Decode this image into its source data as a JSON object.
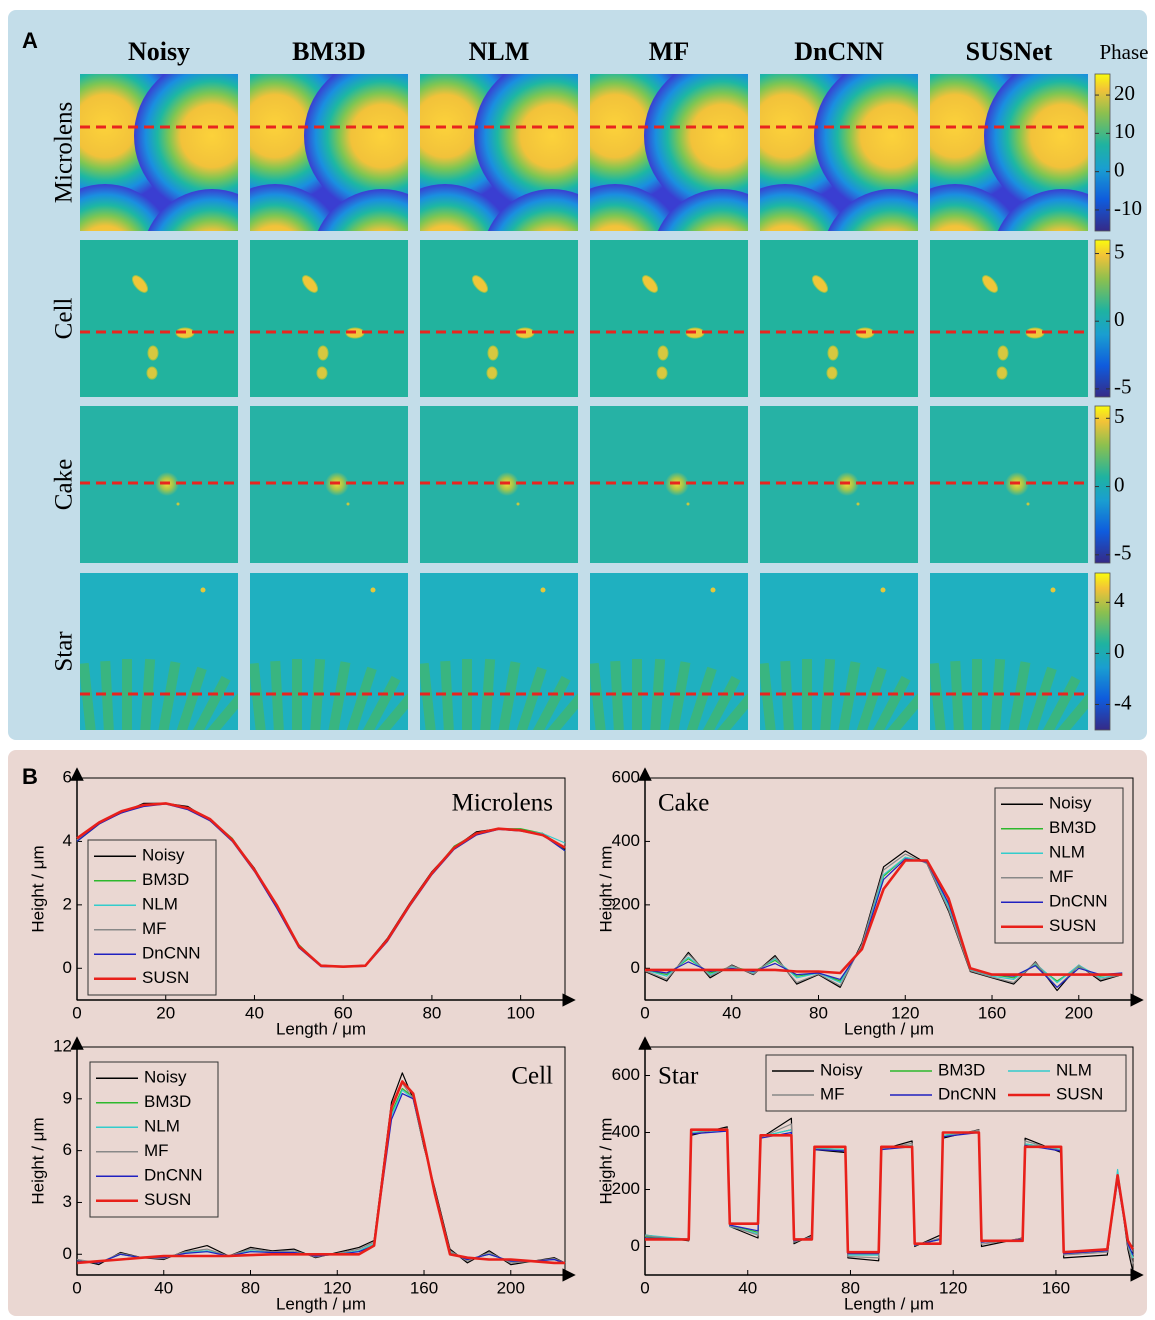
{
  "panel_a": {
    "label": "A",
    "colorbar_title": "Phase",
    "columns": [
      "Noisy",
      "BM3D",
      "NLM",
      "MF",
      "DnCNN",
      "SUSNet"
    ],
    "rows": [
      {
        "label": "Microlens",
        "colorbar": {
          "lim": [
            -15.5,
            25.5
          ],
          "ticks": [
            20,
            10,
            0,
            -10
          ]
        }
      },
      {
        "label": "Cell",
        "colorbar": {
          "lim": [
            -5.6,
            6
          ],
          "ticks": [
            5,
            0,
            -5
          ]
        }
      },
      {
        "label": "Cake",
        "colorbar": {
          "lim": [
            -5.6,
            5.9
          ],
          "ticks": [
            5,
            0,
            -5
          ]
        }
      },
      {
        "label": "Star",
        "colorbar": {
          "lim": [
            -6,
            6.3
          ],
          "ticks": [
            4,
            0,
            -4
          ]
        }
      }
    ]
  },
  "panel_b": {
    "label": "B"
  },
  "chart_data": [
    {
      "type": "line",
      "title": "Microlens",
      "x_label": "Length / μm",
      "y_label": "Height / μm",
      "xlim": [
        0,
        110
      ],
      "ylim": [
        -1,
        6
      ],
      "xticks": [
        0,
        20,
        40,
        60,
        80,
        100
      ],
      "yticks": [
        0,
        2,
        4,
        6
      ],
      "legend": "lower left",
      "legend_columns": 1,
      "x": [
        0,
        5,
        10,
        15,
        20,
        25,
        30,
        35,
        40,
        45,
        50,
        55,
        60,
        65,
        70,
        75,
        80,
        85,
        90,
        95,
        100,
        105,
        110
      ],
      "series": [
        {
          "name": "Noisy",
          "color": "#000000",
          "values": [
            4.05,
            4.6,
            4.9,
            5.2,
            5.2,
            5.1,
            4.65,
            4.05,
            3.15,
            1.95,
            0.7,
            0.1,
            0.05,
            0.1,
            0.95,
            2.05,
            3.05,
            3.8,
            4.3,
            4.4,
            4.35,
            4.25,
            3.75
          ]
        },
        {
          "name": "BM3D",
          "color": "#2db82d",
          "values": [
            4.0,
            4.55,
            4.95,
            5.15,
            5.2,
            5.05,
            4.7,
            4.1,
            3.1,
            2.0,
            0.75,
            0.08,
            0.06,
            0.08,
            0.9,
            2.0,
            3.0,
            3.85,
            4.25,
            4.4,
            4.4,
            4.25,
            3.7
          ]
        },
        {
          "name": "NLM",
          "color": "#33cccc",
          "values": [
            4.05,
            4.6,
            4.95,
            5.15,
            5.2,
            5.05,
            4.7,
            4.05,
            3.1,
            2.0,
            0.7,
            0.08,
            0.05,
            0.08,
            0.9,
            2.0,
            3.0,
            3.8,
            4.25,
            4.4,
            4.35,
            4.25,
            3.95
          ]
        },
        {
          "name": "MF",
          "color": "#888888",
          "values": [
            4.05,
            4.6,
            4.9,
            5.15,
            5.2,
            5.05,
            4.7,
            4.05,
            3.1,
            2.0,
            0.7,
            0.08,
            0.05,
            0.08,
            0.9,
            2.0,
            3.0,
            3.8,
            4.25,
            4.4,
            4.35,
            4.2,
            3.8
          ]
        },
        {
          "name": "DnCNN",
          "color": "#2020c0",
          "values": [
            4.0,
            4.55,
            4.9,
            5.1,
            5.18,
            5.0,
            4.65,
            4.0,
            3.05,
            1.9,
            0.65,
            0.05,
            0.04,
            0.06,
            0.85,
            1.95,
            2.95,
            3.75,
            4.2,
            4.38,
            4.33,
            4.2,
            3.7
          ]
        },
        {
          "name": "SUSN",
          "color": "#e8201a",
          "values": [
            4.1,
            4.6,
            4.95,
            5.15,
            5.2,
            5.05,
            4.7,
            4.05,
            3.1,
            2.0,
            0.7,
            0.08,
            0.05,
            0.08,
            0.9,
            2.0,
            3.0,
            3.8,
            4.25,
            4.4,
            4.35,
            4.2,
            3.8
          ]
        }
      ]
    },
    {
      "type": "line",
      "title": "Cake",
      "x_label": "Length / μm",
      "y_label": "Height / nm",
      "xlim": [
        0,
        225
      ],
      "ylim": [
        -100,
        600
      ],
      "xticks": [
        0,
        40,
        80,
        120,
        160,
        200
      ],
      "yticks": [
        0,
        200,
        400,
        600
      ],
      "legend": "upper right",
      "legend_columns": 1,
      "x": [
        0,
        10,
        20,
        30,
        40,
        50,
        60,
        70,
        80,
        90,
        100,
        110,
        120,
        130,
        140,
        150,
        160,
        170,
        180,
        190,
        200,
        210,
        220
      ],
      "series": [
        {
          "name": "Noisy",
          "color": "#000000",
          "values": [
            -10,
            -40,
            50,
            -30,
            10,
            -20,
            40,
            -50,
            -20,
            -60,
            80,
            320,
            370,
            330,
            180,
            -10,
            -30,
            -50,
            20,
            -70,
            10,
            -40,
            -20
          ]
        },
        {
          "name": "BM3D",
          "color": "#2db82d",
          "values": [
            -5,
            -20,
            30,
            -15,
            5,
            -10,
            25,
            -25,
            -15,
            -40,
            70,
            290,
            350,
            335,
            200,
            0,
            -20,
            -30,
            10,
            -40,
            5,
            -25,
            -15
          ]
        },
        {
          "name": "NLM",
          "color": "#33cccc",
          "values": [
            -5,
            -25,
            35,
            -20,
            5,
            -15,
            30,
            -30,
            -15,
            -45,
            70,
            295,
            350,
            335,
            195,
            -5,
            -25,
            -35,
            15,
            -45,
            10,
            -30,
            -20
          ]
        },
        {
          "name": "MF",
          "color": "#888888",
          "values": [
            -8,
            -35,
            45,
            -25,
            8,
            -18,
            35,
            -45,
            -18,
            -55,
            75,
            310,
            360,
            330,
            185,
            -8,
            -28,
            -45,
            18,
            -60,
            8,
            -35,
            -20
          ]
        },
        {
          "name": "DnCNN",
          "color": "#2020c0",
          "values": [
            -5,
            -15,
            20,
            -10,
            0,
            -10,
            15,
            -20,
            -15,
            -35,
            65,
            280,
            345,
            335,
            205,
            0,
            -20,
            -25,
            8,
            -60,
            0,
            -20,
            -15
          ]
        },
        {
          "name": "SUSN",
          "color": "#e8201a",
          "values": [
            -5,
            -5,
            -5,
            -5,
            -5,
            -5,
            -5,
            -10,
            -10,
            -15,
            60,
            250,
            340,
            340,
            220,
            0,
            -20,
            -20,
            -20,
            -20,
            -20,
            -20,
            -20
          ]
        }
      ]
    },
    {
      "type": "line",
      "title": "Cell",
      "x_label": "Length / μm",
      "y_label": "Height / μm",
      "xlim": [
        0,
        225
      ],
      "ylim": [
        -1.2,
        12
      ],
      "xticks": [
        0,
        40,
        80,
        120,
        160,
        200
      ],
      "yticks": [
        0,
        3,
        6,
        9,
        12
      ],
      "legend": "upper left",
      "legend_columns": 1,
      "x": [
        0,
        10,
        20,
        30,
        40,
        50,
        60,
        70,
        80,
        90,
        100,
        110,
        120,
        130,
        137,
        145,
        150,
        155,
        160,
        165,
        172,
        180,
        190,
        200,
        210,
        220,
        225
      ],
      "series": [
        {
          "name": "Noisy",
          "color": "#000000",
          "values": [
            -0.3,
            -0.6,
            0.1,
            -0.2,
            -0.3,
            0.2,
            0.5,
            -0.1,
            0.4,
            0.2,
            0.3,
            -0.2,
            0.1,
            0.4,
            0.8,
            8.8,
            10.5,
            9.0,
            6.2,
            3.8,
            0.3,
            -0.5,
            0.2,
            -0.6,
            -0.4,
            -0.2,
            -0.5
          ]
        },
        {
          "name": "BM3D",
          "color": "#2db82d",
          "values": [
            -0.4,
            -0.5,
            0,
            -0.2,
            -0.2,
            0.1,
            0.2,
            -0.1,
            0.2,
            0.1,
            0.1,
            -0.1,
            0,
            0.2,
            0.6,
            8.2,
            9.6,
            9.1,
            6.4,
            3.6,
            0.1,
            -0.3,
            0,
            -0.4,
            -0.4,
            -0.3,
            -0.5
          ]
        },
        {
          "name": "NLM",
          "color": "#33cccc",
          "values": [
            -0.4,
            -0.5,
            0,
            -0.2,
            -0.2,
            0.1,
            0.2,
            -0.1,
            0.2,
            0.1,
            0.1,
            -0.1,
            0,
            0.2,
            0.6,
            8.0,
            9.5,
            9.0,
            6.3,
            3.5,
            0.1,
            -0.3,
            0,
            -0.4,
            -0.4,
            -0.3,
            -0.5
          ]
        },
        {
          "name": "MF",
          "color": "#888888",
          "values": [
            -0.3,
            -0.5,
            0.05,
            -0.2,
            -0.25,
            0.15,
            0.3,
            -0.1,
            0.3,
            0.15,
            0.2,
            -0.15,
            0.05,
            0.3,
            0.7,
            8.4,
            9.9,
            9.0,
            6.3,
            3.7,
            0.2,
            -0.4,
            0.1,
            -0.5,
            -0.4,
            -0.25,
            -0.5
          ]
        },
        {
          "name": "DnCNN",
          "color": "#2020c0",
          "values": [
            -0.4,
            -0.5,
            0,
            -0.2,
            -0.2,
            0.05,
            0.15,
            -0.1,
            0.15,
            0.1,
            0.1,
            -0.1,
            0,
            0.15,
            0.5,
            7.8,
            9.3,
            9.0,
            6.4,
            3.4,
            0.05,
            -0.3,
            0,
            -0.4,
            -0.4,
            -0.3,
            -0.5
          ]
        },
        {
          "name": "SUSN",
          "color": "#e8201a",
          "values": [
            -0.5,
            -0.4,
            -0.3,
            -0.2,
            -0.1,
            -0.1,
            -0.1,
            -0.1,
            -0.05,
            0,
            0,
            0,
            0,
            0,
            0.5,
            8.5,
            10,
            9.3,
            6.5,
            3.5,
            0,
            -0.2,
            -0.3,
            -0.3,
            -0.4,
            -0.5,
            -0.5
          ]
        }
      ]
    },
    {
      "type": "line",
      "title": "Star",
      "x_label": "Length / μm",
      "y_label": "Height / nm",
      "xlim": [
        0,
        190
      ],
      "ylim": [
        -100,
        700
      ],
      "xticks": [
        0,
        40,
        80,
        120,
        160
      ],
      "yticks": [
        0,
        200,
        400,
        600
      ],
      "legend": "upper center",
      "legend_columns": 3,
      "x": [
        0,
        17,
        18,
        32,
        33,
        44,
        45,
        57,
        58,
        65,
        66,
        78,
        79,
        91,
        92,
        104,
        105,
        115,
        116,
        130,
        131,
        147,
        148,
        162,
        163,
        180,
        184,
        188,
        190
      ],
      "series": [
        {
          "name": "Noisy",
          "color": "#000000",
          "values": [
            40,
            20,
            390,
            420,
            70,
            30,
            380,
            450,
            10,
            40,
            340,
            330,
            -40,
            -50,
            340,
            370,
            0,
            40,
            380,
            410,
            0,
            30,
            380,
            330,
            -40,
            -30,
            260,
            -10,
            -90
          ]
        },
        {
          "name": "BM3D",
          "color": "#2db82d",
          "values": [
            35,
            25,
            400,
            410,
            75,
            50,
            385,
            410,
            20,
            30,
            345,
            340,
            -30,
            -30,
            345,
            355,
            5,
            25,
            390,
            405,
            15,
            25,
            360,
            340,
            -25,
            -15,
            240,
            10,
            -40
          ]
        },
        {
          "name": "NLM",
          "color": "#33cccc",
          "values": [
            40,
            25,
            400,
            410,
            70,
            45,
            385,
            410,
            20,
            30,
            345,
            340,
            -30,
            -30,
            345,
            355,
            5,
            25,
            390,
            405,
            15,
            25,
            360,
            340,
            -25,
            -15,
            270,
            10,
            -40
          ]
        },
        {
          "name": "MF",
          "color": "#888888",
          "values": [
            38,
            22,
            395,
            415,
            72,
            40,
            382,
            430,
            15,
            35,
            342,
            335,
            -35,
            -40,
            342,
            362,
            3,
            30,
            385,
            408,
            8,
            28,
            370,
            335,
            -30,
            -20,
            250,
            0,
            -60
          ]
        },
        {
          "name": "DnCNN",
          "color": "#2020c0",
          "values": [
            30,
            25,
            395,
            405,
            75,
            55,
            380,
            400,
            20,
            30,
            340,
            335,
            -25,
            -25,
            340,
            350,
            5,
            25,
            385,
            400,
            15,
            25,
            355,
            335,
            -25,
            -15,
            230,
            10,
            -30
          ]
        },
        {
          "name": "SUSN",
          "color": "#e8201a",
          "values": [
            25,
            25,
            410,
            410,
            80,
            80,
            390,
            390,
            25,
            25,
            350,
            350,
            -20,
            -20,
            350,
            350,
            10,
            10,
            400,
            400,
            20,
            20,
            350,
            350,
            -20,
            -10,
            250,
            20,
            -10
          ]
        }
      ]
    }
  ]
}
